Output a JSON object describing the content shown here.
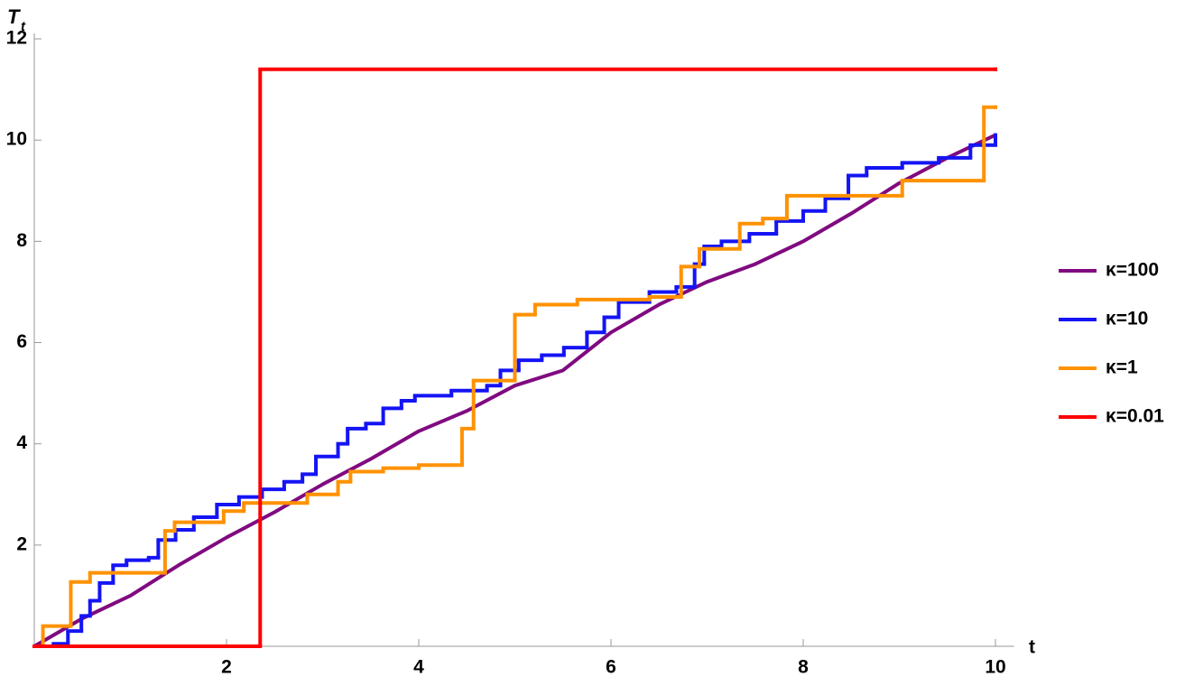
{
  "chart_data": {
    "type": "line",
    "x_label": "t",
    "y_label": "T",
    "y_label_subscript": "t",
    "xlim": [
      0,
      10.1
    ],
    "ylim": [
      0,
      12
    ],
    "xticks": [
      2,
      4,
      6,
      8,
      10
    ],
    "yticks": [
      2,
      4,
      6,
      8,
      10,
      12
    ],
    "legend": "right",
    "series": [
      {
        "name": "κ=100",
        "color": "#800a80",
        "step": false,
        "x": [
          0,
          0.5,
          1,
          1.5,
          2,
          2.5,
          3,
          3.5,
          4,
          4.5,
          5,
          5.5,
          6,
          6.5,
          7,
          7.5,
          8,
          8.5,
          9,
          9.5,
          10
        ],
        "values": [
          0,
          0.55,
          1.0,
          1.6,
          2.15,
          2.65,
          3.2,
          3.7,
          4.25,
          4.65,
          5.15,
          5.45,
          6.2,
          6.75,
          7.2,
          7.55,
          8.0,
          8.55,
          9.15,
          9.65,
          10.1
        ]
      },
      {
        "name": "κ=10",
        "color": "#1414f5",
        "step": true,
        "x": [
          0,
          0.2,
          0.35,
          0.49,
          0.58,
          0.68,
          0.82,
          0.96,
          1.19,
          1.29,
          1.47,
          1.66,
          1.9,
          2.13,
          2.37,
          2.6,
          2.79,
          2.93,
          3.16,
          3.26,
          3.45,
          3.63,
          3.82,
          3.96,
          4.34,
          4.71,
          4.85,
          5.04,
          5.28,
          5.51,
          5.75,
          5.93,
          6.08,
          6.4,
          6.68,
          6.87,
          6.97,
          7.15,
          7.44,
          7.72,
          8.0,
          8.23,
          8.47,
          8.66,
          9.03,
          9.41,
          9.74,
          10
        ],
        "values": [
          0,
          0.05,
          0.3,
          0.6,
          0.9,
          1.25,
          1.6,
          1.7,
          1.75,
          2.1,
          2.3,
          2.55,
          2.8,
          2.95,
          3.1,
          3.25,
          3.4,
          3.75,
          4.0,
          4.3,
          4.4,
          4.7,
          4.85,
          4.95,
          5.05,
          5.15,
          5.45,
          5.65,
          5.75,
          5.9,
          6.2,
          6.5,
          6.8,
          7.0,
          7.1,
          7.55,
          7.9,
          8.0,
          8.15,
          8.4,
          8.6,
          8.85,
          9.3,
          9.45,
          9.55,
          9.65,
          9.9,
          10.1
        ]
      },
      {
        "name": "κ=1",
        "color": "#ff9200",
        "step": true,
        "x": [
          0,
          0.09,
          0.38,
          0.58,
          1.36,
          1.46,
          1.97,
          2.18,
          2.84,
          3.16,
          3.29,
          3.63,
          4.0,
          4.45,
          4.57,
          5.0,
          5.21,
          5.65,
          6.4,
          6.73,
          6.92,
          7.34,
          7.58,
          7.83,
          9.03,
          9.88,
          10
        ],
        "values": [
          0,
          0.4,
          1.27,
          1.45,
          2.28,
          2.45,
          2.67,
          2.83,
          3.0,
          3.25,
          3.45,
          3.52,
          3.58,
          4.3,
          5.25,
          6.55,
          6.75,
          6.85,
          6.9,
          7.5,
          7.85,
          8.35,
          8.45,
          8.9,
          9.2,
          10.65,
          10.65
        ]
      },
      {
        "name": "κ=0.01",
        "color": "#ff0000",
        "step": true,
        "x": [
          0,
          2.35,
          10
        ],
        "values": [
          0,
          11.4,
          11.4
        ]
      }
    ]
  }
}
